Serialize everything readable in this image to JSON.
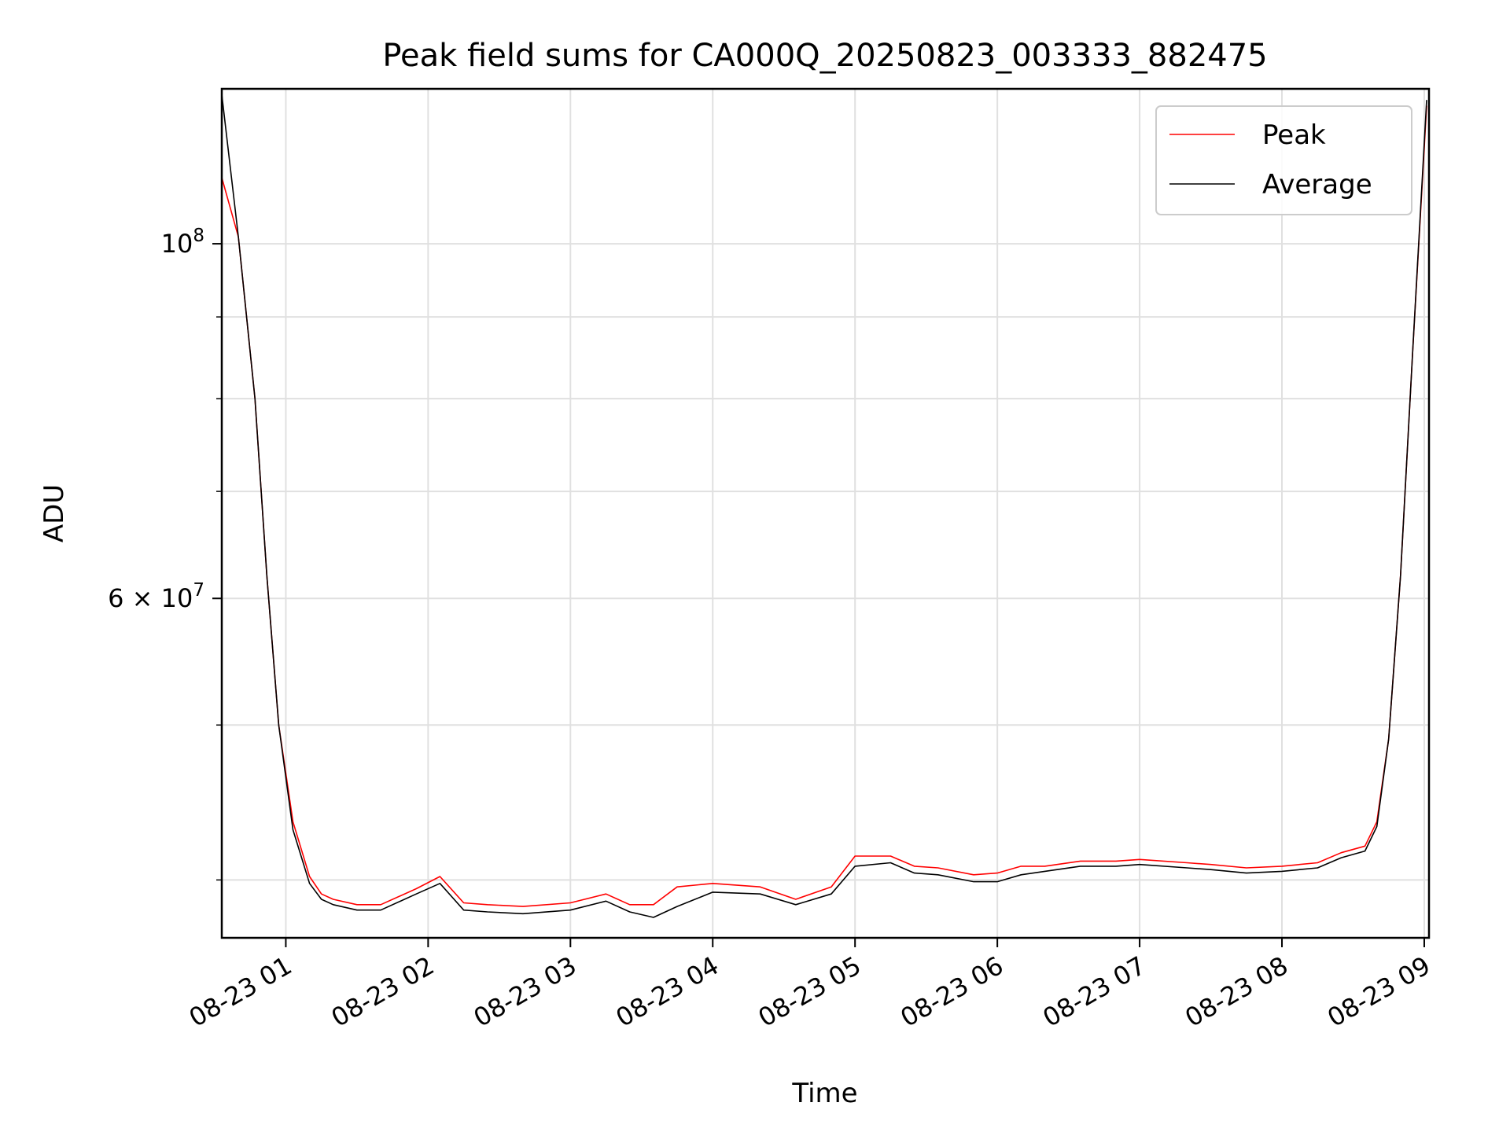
{
  "chart_data": {
    "type": "line",
    "title": "Peak field sums for CA000Q_20250823_003333_882475",
    "xlabel": "Time",
    "ylabel": "ADU",
    "yscale": "log",
    "grid": true,
    "legend_position": "top-right",
    "xlim": [
      "2025-08-23 00:33",
      "2025-08-23 09:02"
    ],
    "ylim": [
      36800000,
      125000000
    ],
    "x_ticks": [
      "08-23 01",
      "08-23 02",
      "08-23 03",
      "08-23 04",
      "08-23 05",
      "08-23 06",
      "08-23 07",
      "08-23 08",
      "08-23 09"
    ],
    "y_ticks": [
      {
        "value": 100000000,
        "base": "10",
        "exp": "8",
        "mant": ""
      },
      {
        "value": 60000000,
        "base": "10",
        "exp": "7",
        "mant": "6 × "
      }
    ],
    "y_minor_ticks": [
      40000000,
      50000000,
      70000000,
      80000000,
      90000000
    ],
    "series": [
      {
        "name": "Peak",
        "color": "#ff0000",
        "x": [
          "2025-08-23 00:33",
          "2025-08-23 00:40",
          "2025-08-23 00:47",
          "2025-08-23 00:52",
          "2025-08-23 00:57",
          "2025-08-23 01:03",
          "2025-08-23 01:10",
          "2025-08-23 01:15",
          "2025-08-23 01:20",
          "2025-08-23 01:30",
          "2025-08-23 01:40",
          "2025-08-23 01:55",
          "2025-08-23 02:05",
          "2025-08-23 02:15",
          "2025-08-23 02:25",
          "2025-08-23 02:40",
          "2025-08-23 03:00",
          "2025-08-23 03:15",
          "2025-08-23 03:25",
          "2025-08-23 03:35",
          "2025-08-23 03:45",
          "2025-08-23 04:00",
          "2025-08-23 04:20",
          "2025-08-23 04:35",
          "2025-08-23 04:50",
          "2025-08-23 05:00",
          "2025-08-23 05:15",
          "2025-08-23 05:25",
          "2025-08-23 05:35",
          "2025-08-23 05:50",
          "2025-08-23 06:00",
          "2025-08-23 06:10",
          "2025-08-23 06:20",
          "2025-08-23 06:35",
          "2025-08-23 06:50",
          "2025-08-23 07:00",
          "2025-08-23 07:20",
          "2025-08-23 07:30",
          "2025-08-23 07:45",
          "2025-08-23 08:00",
          "2025-08-23 08:15",
          "2025-08-23 08:25",
          "2025-08-23 08:35",
          "2025-08-23 08:40",
          "2025-08-23 08:45",
          "2025-08-23 08:50",
          "2025-08-23 08:55",
          "2025-08-23 09:01"
        ],
        "y": [
          110000000,
          101000000,
          80000000,
          62000000,
          50000000,
          43500000,
          40200000,
          39200000,
          38900000,
          38600000,
          38600000,
          39500000,
          40200000,
          38700000,
          38600000,
          38500000,
          38700000,
          39200000,
          38600000,
          38600000,
          39600000,
          39800000,
          39600000,
          38900000,
          39600000,
          41400000,
          41400000,
          40800000,
          40700000,
          40300000,
          40400000,
          40800000,
          40800000,
          41100000,
          41100000,
          41200000,
          41000000,
          40900000,
          40700000,
          40800000,
          41000000,
          41600000,
          42000000,
          43500000,
          49000000,
          62000000,
          85000000,
          122000000
        ]
      },
      {
        "name": "Average",
        "color": "#000000",
        "x": [
          "2025-08-23 00:33",
          "2025-08-23 00:40",
          "2025-08-23 00:47",
          "2025-08-23 00:52",
          "2025-08-23 00:57",
          "2025-08-23 01:03",
          "2025-08-23 01:10",
          "2025-08-23 01:15",
          "2025-08-23 01:20",
          "2025-08-23 01:30",
          "2025-08-23 01:40",
          "2025-08-23 01:55",
          "2025-08-23 02:05",
          "2025-08-23 02:15",
          "2025-08-23 02:25",
          "2025-08-23 02:40",
          "2025-08-23 03:00",
          "2025-08-23 03:15",
          "2025-08-23 03:25",
          "2025-08-23 03:35",
          "2025-08-23 03:45",
          "2025-08-23 04:00",
          "2025-08-23 04:20",
          "2025-08-23 04:35",
          "2025-08-23 04:50",
          "2025-08-23 05:00",
          "2025-08-23 05:15",
          "2025-08-23 05:25",
          "2025-08-23 05:35",
          "2025-08-23 05:50",
          "2025-08-23 06:00",
          "2025-08-23 06:10",
          "2025-08-23 06:20",
          "2025-08-23 06:35",
          "2025-08-23 06:50",
          "2025-08-23 07:00",
          "2025-08-23 07:20",
          "2025-08-23 07:30",
          "2025-08-23 07:45",
          "2025-08-23 08:00",
          "2025-08-23 08:15",
          "2025-08-23 08:25",
          "2025-08-23 08:35",
          "2025-08-23 08:40",
          "2025-08-23 08:45",
          "2025-08-23 08:50",
          "2025-08-23 08:55",
          "2025-08-23 09:01"
        ],
        "y": [
          124000000,
          101000000,
          80000000,
          62000000,
          50000000,
          43000000,
          39800000,
          38900000,
          38600000,
          38300000,
          38300000,
          39200000,
          39800000,
          38300000,
          38200000,
          38100000,
          38300000,
          38800000,
          38200000,
          37900000,
          38500000,
          39300000,
          39200000,
          38600000,
          39200000,
          40800000,
          41000000,
          40400000,
          40300000,
          39900000,
          39900000,
          40300000,
          40500000,
          40800000,
          40800000,
          40900000,
          40700000,
          40600000,
          40400000,
          40500000,
          40700000,
          41300000,
          41700000,
          43200000,
          49000000,
          62000000,
          85000000,
          123000000
        ]
      }
    ]
  }
}
